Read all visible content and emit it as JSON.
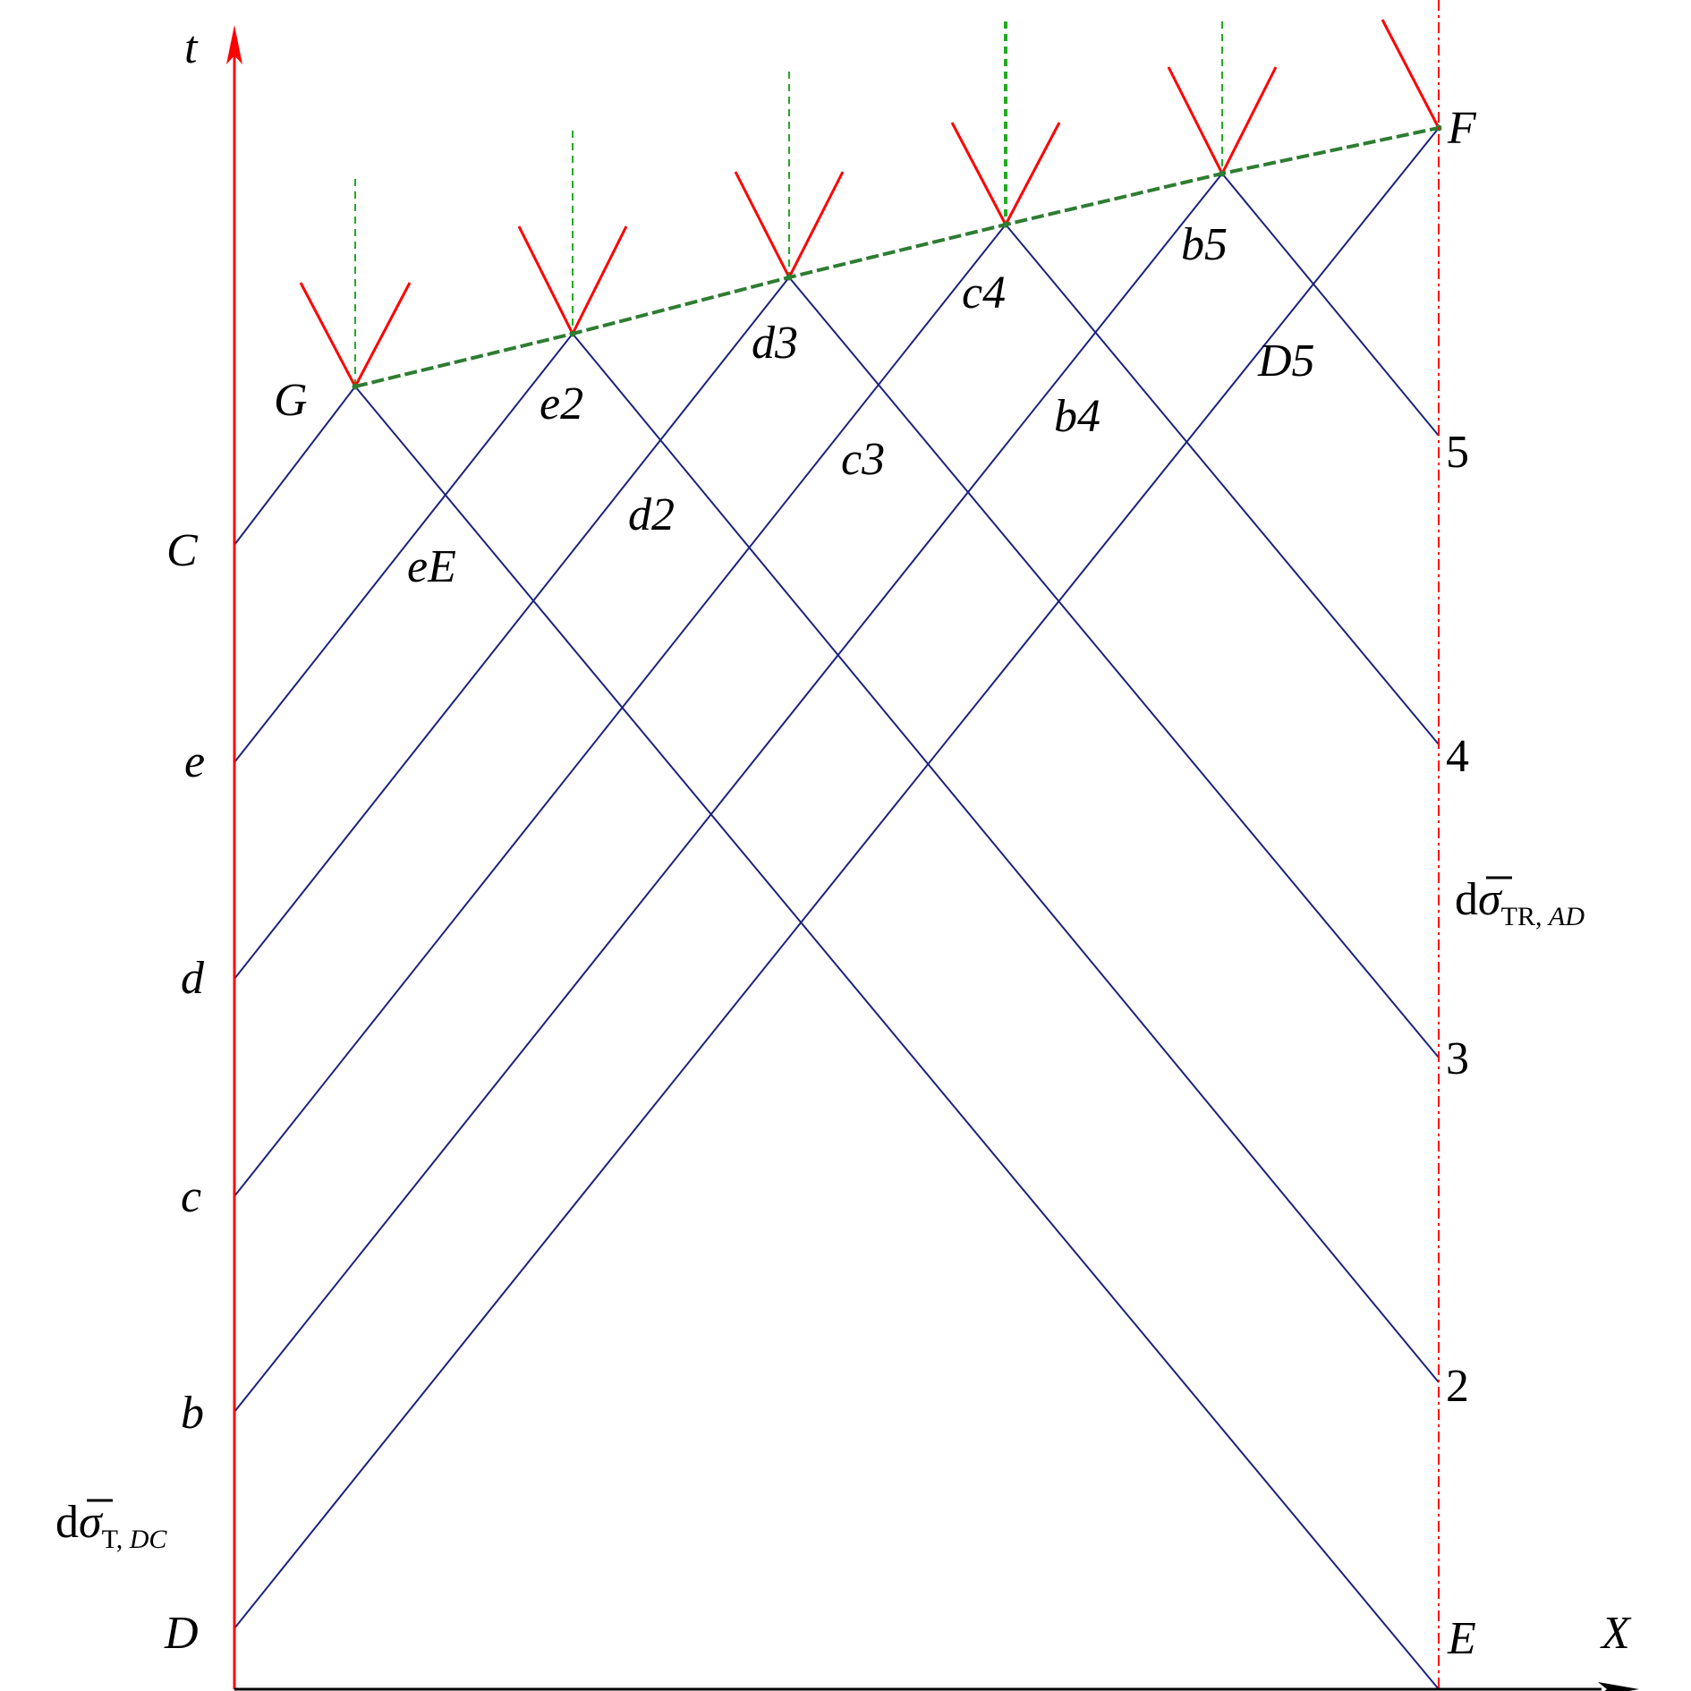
{
  "axes": {
    "t_label": "t",
    "x_label": "X"
  },
  "left_boundary_labels": {
    "C": "C",
    "e": "e",
    "d": "d",
    "c": "c",
    "b": "b",
    "D": "D"
  },
  "right_boundary_labels": {
    "five": "5",
    "four": "4",
    "three": "3",
    "two": "2",
    "E": "E",
    "F": "F"
  },
  "top_points": {
    "G": "G",
    "e2": "e2",
    "d3": "d3",
    "c4": "c4",
    "b5": "b5"
  },
  "interior_points": {
    "eE": "eE",
    "d2": "d2",
    "c3": "c3",
    "b4": "b4",
    "D5": "D5"
  },
  "stress_left": {
    "prefix": "d",
    "sigma": "σ",
    "sub_plain": "T, ",
    "sub_italic": "DC"
  },
  "stress_right": {
    "prefix": "d",
    "sigma": "σ",
    "sub_plain": "TR, ",
    "sub_italic": "AD"
  },
  "colors": {
    "boundary": "#ff0000",
    "characteristic": "#1a237e",
    "unloading_front": "#2e7d32",
    "dashed_guide": "#22aa22",
    "text": "#000000"
  }
}
